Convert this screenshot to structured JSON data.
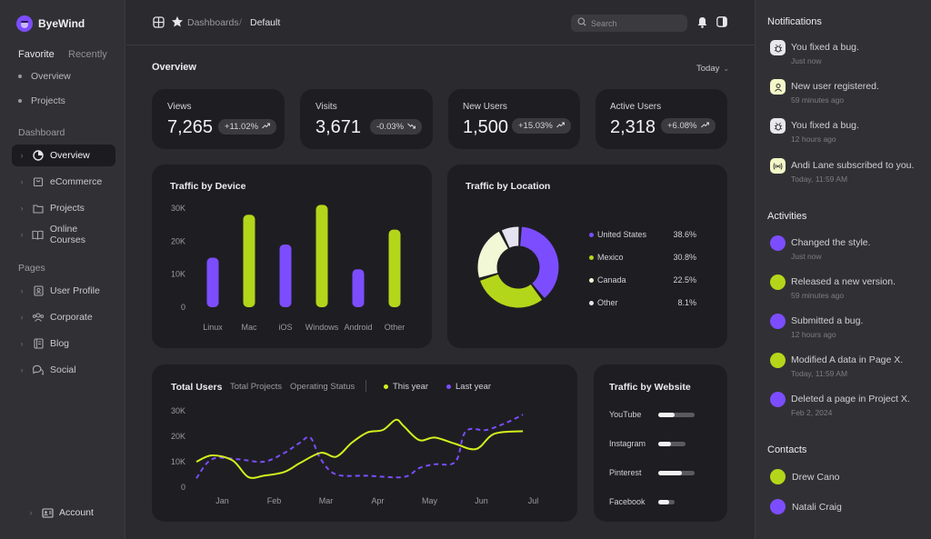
{
  "app": {
    "name": "ByeWind"
  },
  "sidebar": {
    "tabs": [
      "Favorite",
      "Recently"
    ],
    "favorites": [
      "Overview",
      "Projects"
    ],
    "dashboard_heading": "Dashboard",
    "dashboard_items": [
      "Overview",
      "eCommerce",
      "Projects",
      "Online Courses"
    ],
    "pages_heading": "Pages",
    "pages_items": [
      "User Profile",
      "Corporate",
      "Blog",
      "Social"
    ],
    "account": "Account"
  },
  "topbar": {
    "breadcrumb_1": "Dashboards",
    "breadcrumb_2": "Default",
    "search_placeholder": "Search"
  },
  "overview": {
    "title": "Overview",
    "range": "Today",
    "stats": [
      {
        "label": "Views",
        "value": "7,265",
        "change": "+11.02%"
      },
      {
        "label": "Visits",
        "value": "3,671",
        "change": "-0.03%"
      },
      {
        "label": "New Users",
        "value": "1,500",
        "change": "+15.03%"
      },
      {
        "label": "Active Users",
        "value": "2,318",
        "change": "+6.08%"
      }
    ]
  },
  "device": {
    "title": "Traffic by Device",
    "ticks": [
      "30K",
      "20K",
      "10K",
      "0"
    ]
  },
  "location": {
    "title": "Traffic by Location",
    "items": [
      {
        "name": "United States",
        "value": "38.6%",
        "color": "#7c4dff"
      },
      {
        "name": "Mexico",
        "value": "30.8%",
        "color": "#b4d61a"
      },
      {
        "name": "Canada",
        "value": "22.5%",
        "color": "#f2f7d6"
      },
      {
        "name": "Other",
        "value": "8.1%",
        "color": "#e6e3f0"
      }
    ]
  },
  "users": {
    "title": "Total Users",
    "tab_projects": "Total Projects",
    "tab_status": "Operating Status",
    "legend_this": "This year",
    "legend_last": "Last year",
    "ticks": [
      "30K",
      "20K",
      "10K",
      "0"
    ]
  },
  "website": {
    "title": "Traffic by Website",
    "items": [
      {
        "name": "YouTube",
        "value": 0.45
      },
      {
        "name": "Instagram",
        "value": 0.35
      },
      {
        "name": "Pinterest",
        "value": 0.65
      },
      {
        "name": "Facebook",
        "value": 0.3
      }
    ]
  },
  "notifications": {
    "title": "Notifications",
    "items": [
      {
        "text": "You fixed a bug.",
        "time": "Just now",
        "icon": "bug-icon"
      },
      {
        "text": "New user registered.",
        "time": "59 minutes ago",
        "icon": "user-icon"
      },
      {
        "text": "You fixed a bug.",
        "time": "12 hours ago",
        "icon": "bug-icon"
      },
      {
        "text": "Andi Lane subscribed to you.",
        "time": "Today, 11:59 AM",
        "icon": "broadcast-icon"
      }
    ]
  },
  "activities": {
    "title": "Activities",
    "items": [
      {
        "text": "Changed the style.",
        "time": "Just now"
      },
      {
        "text": "Released a new version.",
        "time": "59 minutes ago"
      },
      {
        "text": "Submitted a bug.",
        "time": "12 hours ago"
      },
      {
        "text": "Modified A data in Page X.",
        "time": "Today, 11:59 AM"
      },
      {
        "text": "Deleted a page in Project X.",
        "time": "Feb 2, 2024"
      }
    ]
  },
  "contacts": {
    "title": "Contacts",
    "items": [
      "Drew Cano",
      "Natali Craig"
    ]
  },
  "chart_data": [
    {
      "type": "bar",
      "title": "Traffic by Device",
      "categories": [
        "Linux",
        "Mac",
        "iOS",
        "Windows",
        "Android",
        "Other"
      ],
      "values": [
        15000,
        28000,
        19000,
        31000,
        11500,
        23500
      ],
      "ylim": [
        0,
        30000
      ],
      "colors": [
        "#7c4dff",
        "#b4d61a",
        "#7c4dff",
        "#b4d61a",
        "#7c4dff",
        "#b4d61a"
      ]
    },
    {
      "type": "pie",
      "title": "Traffic by Location",
      "categories": [
        "United States",
        "Mexico",
        "Canada",
        "Other"
      ],
      "values": [
        38.6,
        30.8,
        22.5,
        8.1
      ]
    },
    {
      "type": "line",
      "title": "Total Users",
      "categories": [
        "Jan",
        "Feb",
        "Mar",
        "Apr",
        "May",
        "Jun",
        "Jul"
      ],
      "ylim": [
        0,
        30000
      ],
      "series": [
        {
          "name": "This year",
          "color": "#d4f01e",
          "dashed": false,
          "values": [
            [
              0.0,
              10000
            ],
            [
              0.3,
              12500
            ],
            [
              0.7,
              10500
            ],
            [
              1.0,
              4000
            ],
            [
              1.3,
              4500
            ],
            [
              1.7,
              6000
            ],
            [
              2.0,
              9500
            ],
            [
              2.4,
              13500
            ],
            [
              2.7,
              12000
            ],
            [
              3.0,
              17500
            ],
            [
              3.3,
              21500
            ],
            [
              3.6,
              22500
            ],
            [
              3.85,
              26500
            ],
            [
              4.0,
              24000
            ],
            [
              4.3,
              18500
            ],
            [
              4.6,
              19500
            ],
            [
              5.0,
              17000
            ],
            [
              5.4,
              15000
            ],
            [
              5.75,
              21000
            ],
            [
              6.3,
              22000
            ]
          ]
        },
        {
          "name": "Last year",
          "color": "#7c4dff",
          "dashed": true,
          "values": [
            [
              0.0,
              3500
            ],
            [
              0.3,
              11000
            ],
            [
              0.8,
              11000
            ],
            [
              1.3,
              10000
            ],
            [
              1.7,
              13500
            ],
            [
              2.0,
              17500
            ],
            [
              2.2,
              19500
            ],
            [
              2.4,
              11000
            ],
            [
              2.7,
              5000
            ],
            [
              3.3,
              4500
            ],
            [
              4.0,
              4000
            ],
            [
              4.3,
              7500
            ],
            [
              4.6,
              9000
            ],
            [
              5.0,
              10000
            ],
            [
              5.2,
              22000
            ],
            [
              5.6,
              22500
            ],
            [
              6.0,
              25500
            ],
            [
              6.3,
              28500
            ]
          ]
        }
      ]
    }
  ]
}
